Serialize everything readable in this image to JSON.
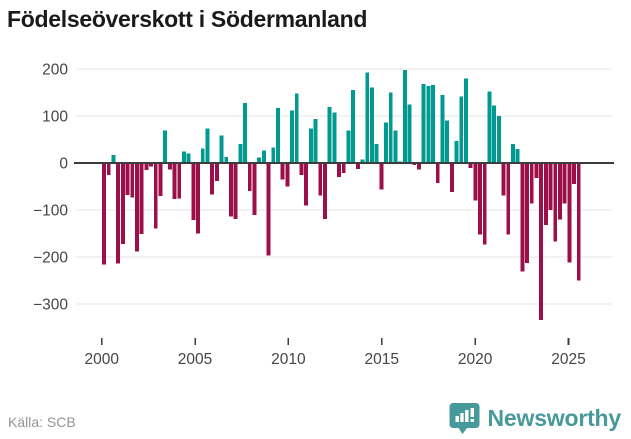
{
  "title": "Födelseöverskott i Södermanland",
  "source": "Källa: SCB",
  "logo": {
    "text": "Newsworthy",
    "icon": "newsworthy-bubble-chart-icon"
  },
  "colors": {
    "positive": "#009a91",
    "negative": "#9c0f48",
    "grid": "#e4e4e4",
    "zero_line": "#3d3d3d",
    "axis_text": "#454545",
    "title_text": "#1a1a1a",
    "source_text": "#949494",
    "logo": "#47999b"
  },
  "chart_data": {
    "type": "bar",
    "title": "Födelseöverskott i Södermanland",
    "xlabel": "",
    "ylabel": "",
    "x_unit": "quarter",
    "grid": "horizontal",
    "legend": "none",
    "x_ticks": [
      2000,
      2005,
      2010,
      2015,
      2020,
      2025
    ],
    "y_ticks": [
      200,
      100,
      0,
      -100,
      -200,
      -300
    ],
    "ylim": [
      -360,
      230
    ],
    "quarters": [
      "2000 Q1",
      "2000 Q2",
      "2000 Q3",
      "2000 Q4",
      "2001 Q1",
      "2001 Q2",
      "2001 Q3",
      "2001 Q4",
      "2002 Q1",
      "2002 Q2",
      "2002 Q3",
      "2002 Q4",
      "2003 Q1",
      "2003 Q2",
      "2003 Q3",
      "2003 Q4",
      "2004 Q1",
      "2004 Q2",
      "2004 Q3",
      "2004 Q4",
      "2005 Q1",
      "2005 Q2",
      "2005 Q3",
      "2005 Q4",
      "2006 Q1",
      "2006 Q2",
      "2006 Q3",
      "2006 Q4",
      "2007 Q1",
      "2007 Q2",
      "2007 Q3",
      "2007 Q4",
      "2008 Q1",
      "2008 Q2",
      "2008 Q3",
      "2008 Q4",
      "2009 Q1",
      "2009 Q2",
      "2009 Q3",
      "2009 Q4",
      "2010 Q1",
      "2010 Q2",
      "2010 Q3",
      "2010 Q4",
      "2011 Q1",
      "2011 Q2",
      "2011 Q3",
      "2011 Q4",
      "2012 Q1",
      "2012 Q2",
      "2012 Q3",
      "2012 Q4",
      "2013 Q1",
      "2013 Q2",
      "2013 Q3",
      "2013 Q4",
      "2014 Q1",
      "2014 Q2",
      "2014 Q3",
      "2014 Q4",
      "2015 Q1",
      "2015 Q2",
      "2015 Q3",
      "2015 Q4",
      "2016 Q1",
      "2016 Q2",
      "2016 Q3",
      "2016 Q4",
      "2017 Q1",
      "2017 Q2",
      "2017 Q3",
      "2017 Q4",
      "2018 Q1",
      "2018 Q2",
      "2018 Q3",
      "2018 Q4",
      "2019 Q1",
      "2019 Q2",
      "2019 Q3",
      "2019 Q4",
      "2020 Q1",
      "2020 Q2",
      "2020 Q3",
      "2020 Q4",
      "2021 Q1",
      "2021 Q2",
      "2021 Q3",
      "2021 Q4",
      "2022 Q1",
      "2022 Q2",
      "2022 Q3",
      "2022 Q4",
      "2023 Q1",
      "2023 Q2",
      "2023 Q3",
      "2023 Q4",
      "2024 Q1",
      "2024 Q2",
      "2024 Q3",
      "2024 Q4",
      "2025 Q1",
      "2025 Q2"
    ],
    "values": [
      -216,
      -26,
      17,
      -213,
      -172,
      -68,
      -73,
      -188,
      -151,
      -15,
      -7,
      -139,
      -70,
      69,
      -14,
      -77,
      -75,
      24,
      20,
      -121,
      -150,
      31,
      73,
      -67,
      -38,
      58,
      13,
      -114,
      -119,
      40,
      127,
      -60,
      -110,
      12,
      27,
      -197,
      33,
      117,
      -35,
      -50,
      112,
      148,
      -25,
      -90,
      73,
      93,
      -69,
      -119,
      119,
      107,
      -30,
      -21,
      69,
      155,
      -13,
      7,
      192,
      160,
      40,
      -56,
      86,
      150,
      69,
      3,
      198,
      124,
      -4,
      -14,
      168,
      164,
      166,
      -42,
      145,
      90,
      -62,
      47,
      141,
      179,
      -11,
      -80,
      -152,
      -173,
      152,
      122,
      100,
      -69,
      -152,
      40,
      30,
      -230,
      -212,
      -86,
      -32,
      -334,
      -132,
      -100,
      -167,
      -120,
      -86,
      -211,
      -45,
      -250
    ]
  }
}
